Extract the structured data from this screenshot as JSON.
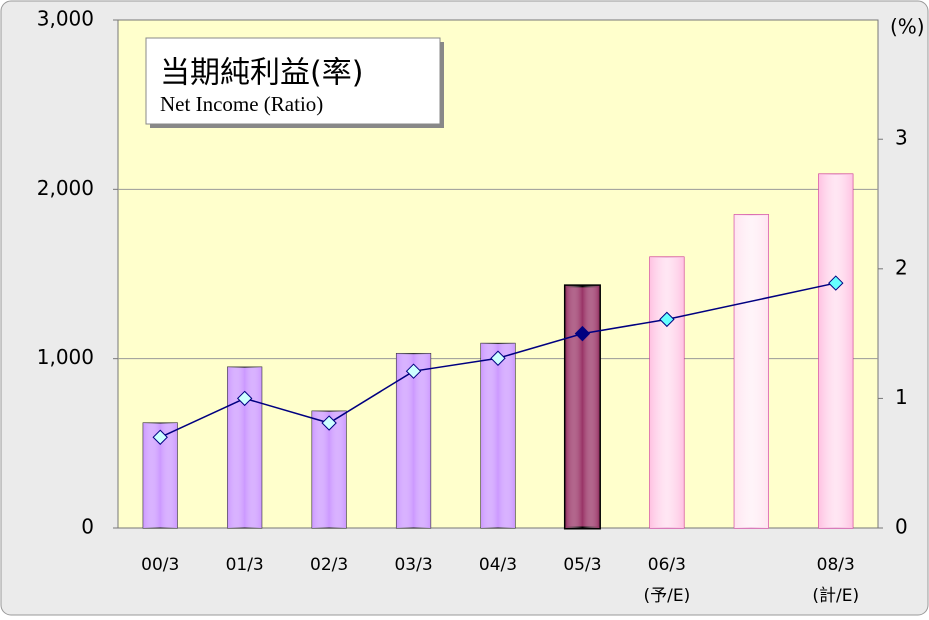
{
  "chart_data": {
    "type": "bar-line",
    "title": "当期純利益(率)",
    "subtitle": "Net Income (Ratio)",
    "y2_label": "(%)",
    "categories": [
      "00/3",
      "01/3",
      "02/3",
      "03/3",
      "04/3",
      "05/3",
      [
        "06/3",
        "(予/E)"
      ],
      null,
      [
        "08/3",
        "(計/E)"
      ]
    ],
    "series": [
      {
        "name": "Net Income",
        "type": "bar",
        "values": [
          620,
          950,
          690,
          1030,
          1090,
          1430,
          1600,
          1850,
          2090
        ],
        "colors": [
          "#cc99ff",
          "#cc99ff",
          "#cc99ff",
          "#cc99ff",
          "#cc99ff",
          "#993366",
          "#ffc2e2",
          "#ffe4f0",
          "#ffc2e2"
        ]
      },
      {
        "name": "Ratio",
        "type": "line",
        "axis": "y2",
        "color": "#000080",
        "values": [
          0.7,
          1.0,
          0.81,
          1.21,
          1.31,
          1.5,
          1.61,
          null,
          1.89
        ],
        "marker_colors": [
          "#ccffff",
          "#ccffff",
          "#ccffff",
          "#ccffff",
          "#ccffff",
          "#000080",
          "#66ffff",
          null,
          "#66ffff"
        ]
      }
    ],
    "connect_gaps": true,
    "ylim": [
      0,
      3000
    ],
    "yticks": [
      0,
      {
        "value": 1000,
        "label": "1,000"
      },
      {
        "value": 2000,
        "label": "2,000"
      },
      {
        "value": 3000,
        "label": "3,000"
      }
    ],
    "y2lim": [
      0,
      3.92
    ],
    "y2ticks": [
      0,
      1,
      2,
      3
    ],
    "grid": true
  }
}
